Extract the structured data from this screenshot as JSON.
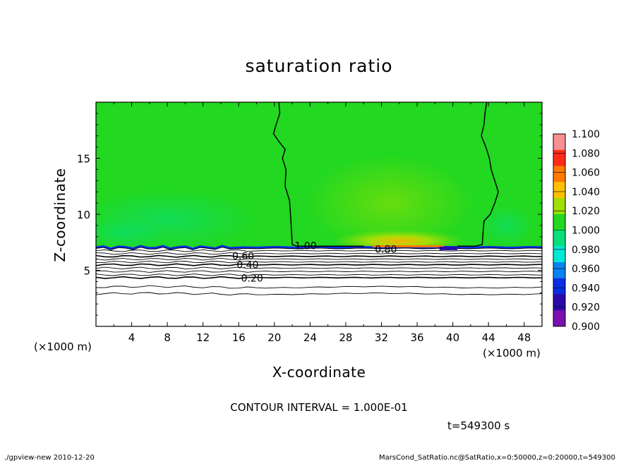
{
  "chart_data": {
    "type": "heatmap",
    "title": "saturation ratio",
    "xlabel": "X-coordinate",
    "ylabel": "Z-coordinate",
    "x_unit": "(×1000 m)",
    "y_unit": "(×1000 m)",
    "xlim": [
      0,
      50
    ],
    "ylim": [
      0,
      20
    ],
    "x_ticks": [
      4,
      8,
      12,
      16,
      20,
      24,
      28,
      32,
      36,
      40,
      44,
      48
    ],
    "y_ticks": [
      5,
      10,
      15
    ],
    "colorbar": {
      "levels": [
        "1.100",
        "1.080",
        "1.060",
        "1.040",
        "1.020",
        "1.000",
        "0.980",
        "0.960",
        "0.940",
        "0.920",
        "0.900"
      ],
      "colors": [
        "#f79090",
        "#ff2a1a",
        "#ff7a00",
        "#ffc000",
        "#9ee000",
        "#22d820",
        "#08e07a",
        "#00e8d6",
        "#0a82f0",
        "#0a2ee6",
        "#2a0aa8",
        "#7a10b0"
      ]
    },
    "contour_labels": [
      {
        "text": "1.00",
        "x": 23.5,
        "z": 7.2
      },
      {
        "text": "0.80",
        "x": 32.5,
        "z": 6.9
      },
      {
        "text": "0.60",
        "x": 16.5,
        "z": 6.3
      },
      {
        "text": "0.40",
        "x": 17.0,
        "z": 5.5
      },
      {
        "text": "0.20",
        "x": 17.5,
        "z": 4.3
      }
    ],
    "contour_interval": "CONTOUR INTERVAL = 1.000E-01",
    "time_label": "t=549300 s"
  },
  "footer": {
    "left": "./gpview-new   2010-12-20",
    "right": "MarsCond_SatRatio.nc@SatRatio,x=0:50000,z=0:20000,t=549300"
  }
}
